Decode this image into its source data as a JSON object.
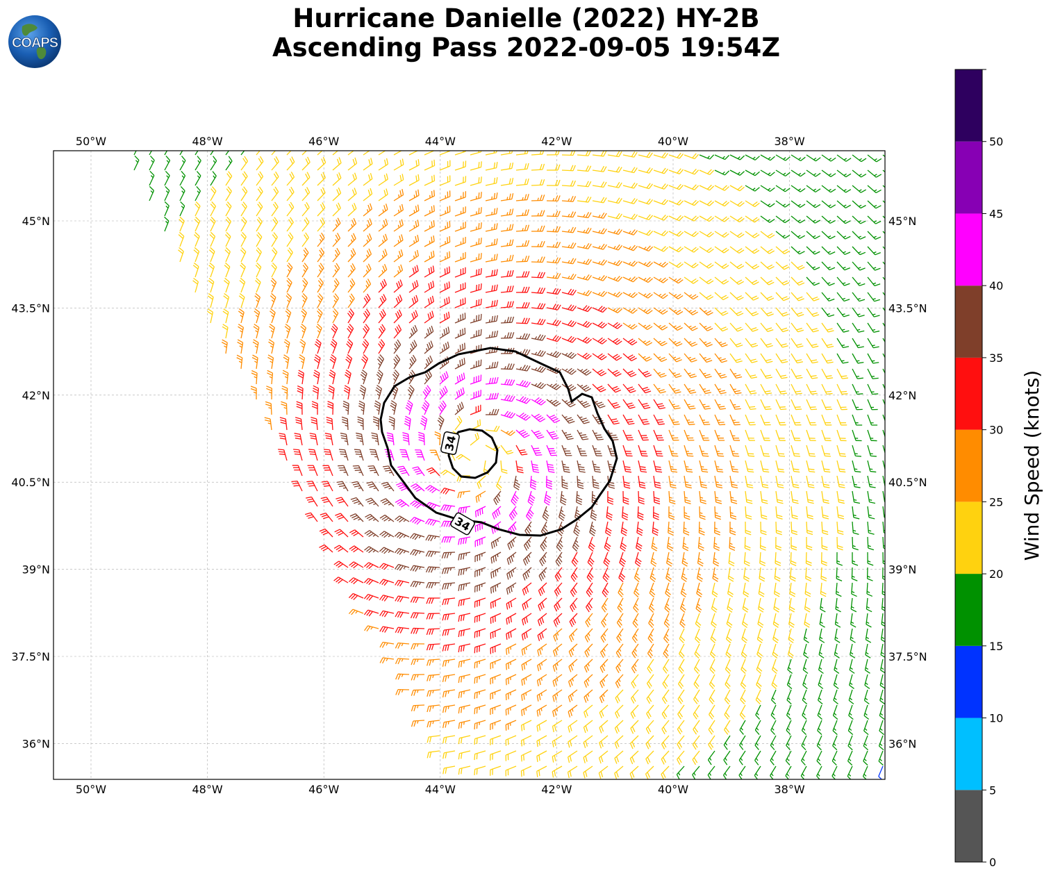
{
  "title": {
    "line1": "Hurricane Danielle (2022) HY-2B",
    "line2": "Ascending Pass 2022-09-05 19:54Z"
  },
  "logo": {
    "text": "COAPS"
  },
  "map": {
    "lon_labels": [
      "50°W",
      "48°W",
      "46°W",
      "44°W",
      "42°W",
      "40°W",
      "38°W"
    ],
    "lat_labels": [
      "45°N",
      "43.5°N",
      "42°N",
      "40.5°N",
      "39°N",
      "37.5°N",
      "36°N"
    ],
    "storm_center": {
      "lon": -43.4,
      "lat": 40.95
    },
    "contour_level": 34,
    "contour_labels": [
      "34",
      "34"
    ]
  },
  "colorbar": {
    "label": "Wind Speed (knots)",
    "ticks": [
      "0",
      "5",
      "10",
      "15",
      "20",
      "25",
      "30",
      "35",
      "40",
      "45",
      "50"
    ],
    "bins": [
      {
        "min": 0,
        "max": 5,
        "color": "#555555"
      },
      {
        "min": 5,
        "max": 10,
        "color": "#00bfff"
      },
      {
        "min": 10,
        "max": 15,
        "color": "#0033ff"
      },
      {
        "min": 15,
        "max": 20,
        "color": "#009100"
      },
      {
        "min": 20,
        "max": 25,
        "color": "#ffd20f"
      },
      {
        "min": 25,
        "max": 30,
        "color": "#ff8c00"
      },
      {
        "min": 30,
        "max": 35,
        "color": "#ff0f0f"
      },
      {
        "min": 35,
        "max": 40,
        "color": "#7f3f2a"
      },
      {
        "min": 40,
        "max": 45,
        "color": "#ff00ff"
      },
      {
        "min": 45,
        "max": 50,
        "color": "#8700b4"
      },
      {
        "min": 50,
        "max": 55,
        "color": "#2e005f"
      }
    ]
  }
}
